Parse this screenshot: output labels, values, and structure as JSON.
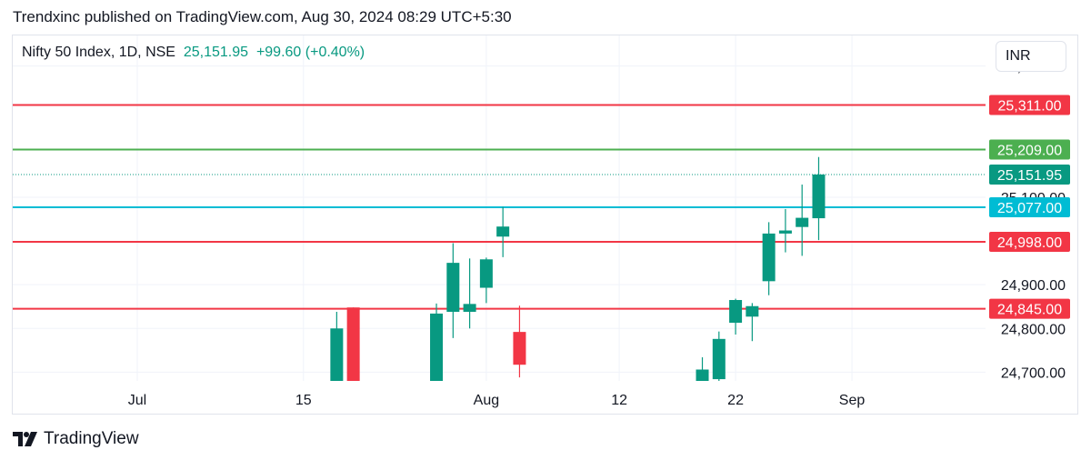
{
  "header": {
    "published_text": "Trendxinc published on TradingView.com, Aug 30, 2024 08:29 UTC+5:30"
  },
  "symbol": {
    "title": "Nifty 50 Index, 1D, NSE",
    "price": "25,151.95",
    "change": "+99.60 (+0.40%)"
  },
  "currency": "INR",
  "footer": {
    "brand": "TradingView",
    "logo_icon": "tradingview-logo-icon"
  },
  "colors": {
    "up": "#089981",
    "down": "#f23645",
    "cyan": "#00bcd4",
    "green_line": "#4caf50",
    "grid": "#f0f3fa"
  },
  "chart_data": {
    "type": "candlestick",
    "ylim": [
      24680,
      25470
    ],
    "y_ticks": [
      {
        "value": 24700,
        "label": "24,700.00"
      },
      {
        "value": 24800,
        "label": "24,800.00"
      },
      {
        "value": 24900,
        "label": "24,900.00"
      },
      {
        "value": 25100,
        "label": "25,100.00"
      },
      {
        "value": 25400,
        "label": "25,400.00"
      }
    ],
    "x_ticks": [
      {
        "index": 0,
        "label": "Jul"
      },
      {
        "index": 10,
        "label": "15"
      },
      {
        "index": 21,
        "label": "Aug"
      },
      {
        "index": 29,
        "label": "12"
      },
      {
        "index": 36,
        "label": "22"
      },
      {
        "index": 43,
        "label": "Sep"
      }
    ],
    "horizontal_lines": [
      {
        "value": 25311,
        "label": "25,311.00",
        "color": "#f23645",
        "style": "solid"
      },
      {
        "value": 25209,
        "label": "25,209.00",
        "color": "#4caf50",
        "style": "solid"
      },
      {
        "value": 25077,
        "label": "25,077.00",
        "color": "#00bcd4",
        "style": "solid"
      },
      {
        "value": 24998,
        "label": "24,998.00",
        "color": "#f23645",
        "style": "solid"
      },
      {
        "value": 24845,
        "label": "24,845.00",
        "color": "#f23645",
        "style": "solid"
      }
    ],
    "last_price": {
      "value": 25151.95,
      "label": "25,151.95",
      "color": "#089981"
    },
    "candles": [
      {
        "index": 12,
        "open": 24680,
        "high": 24838,
        "low": 24680,
        "close": 24800
      },
      {
        "index": 13,
        "open": 24848,
        "high": 24848,
        "low": 24680,
        "close": 24680
      },
      {
        "index": 18,
        "open": 24680,
        "high": 24857,
        "low": 24680,
        "close": 24834
      },
      {
        "index": 19,
        "open": 24838,
        "high": 24995,
        "low": 24778,
        "close": 24950
      },
      {
        "index": 20,
        "open": 24838,
        "high": 24960,
        "low": 24800,
        "close": 24856
      },
      {
        "index": 21,
        "open": 24893,
        "high": 24962,
        "low": 24858,
        "close": 24958
      },
      {
        "index": 22,
        "open": 25010,
        "high": 25078,
        "low": 24963,
        "close": 25033
      },
      {
        "index": 23,
        "open": 24792,
        "high": 24852,
        "low": 24688,
        "close": 24717
      },
      {
        "index": 34,
        "open": 24680,
        "high": 24734,
        "low": 24680,
        "close": 24706
      },
      {
        "index": 35,
        "open": 24684,
        "high": 24793,
        "low": 24680,
        "close": 24776
      },
      {
        "index": 36,
        "open": 24813,
        "high": 24868,
        "low": 24786,
        "close": 24865
      },
      {
        "index": 37,
        "open": 24827,
        "high": 24858,
        "low": 24771,
        "close": 24851
      },
      {
        "index": 38,
        "open": 24908,
        "high": 25043,
        "low": 24876,
        "close": 25017
      },
      {
        "index": 39,
        "open": 25017,
        "high": 25073,
        "low": 24974,
        "close": 25024
      },
      {
        "index": 40,
        "open": 25032,
        "high": 25129,
        "low": 24966,
        "close": 25053
      },
      {
        "index": 41,
        "open": 25052,
        "high": 25192,
        "low": 25002,
        "close": 25152
      }
    ]
  }
}
